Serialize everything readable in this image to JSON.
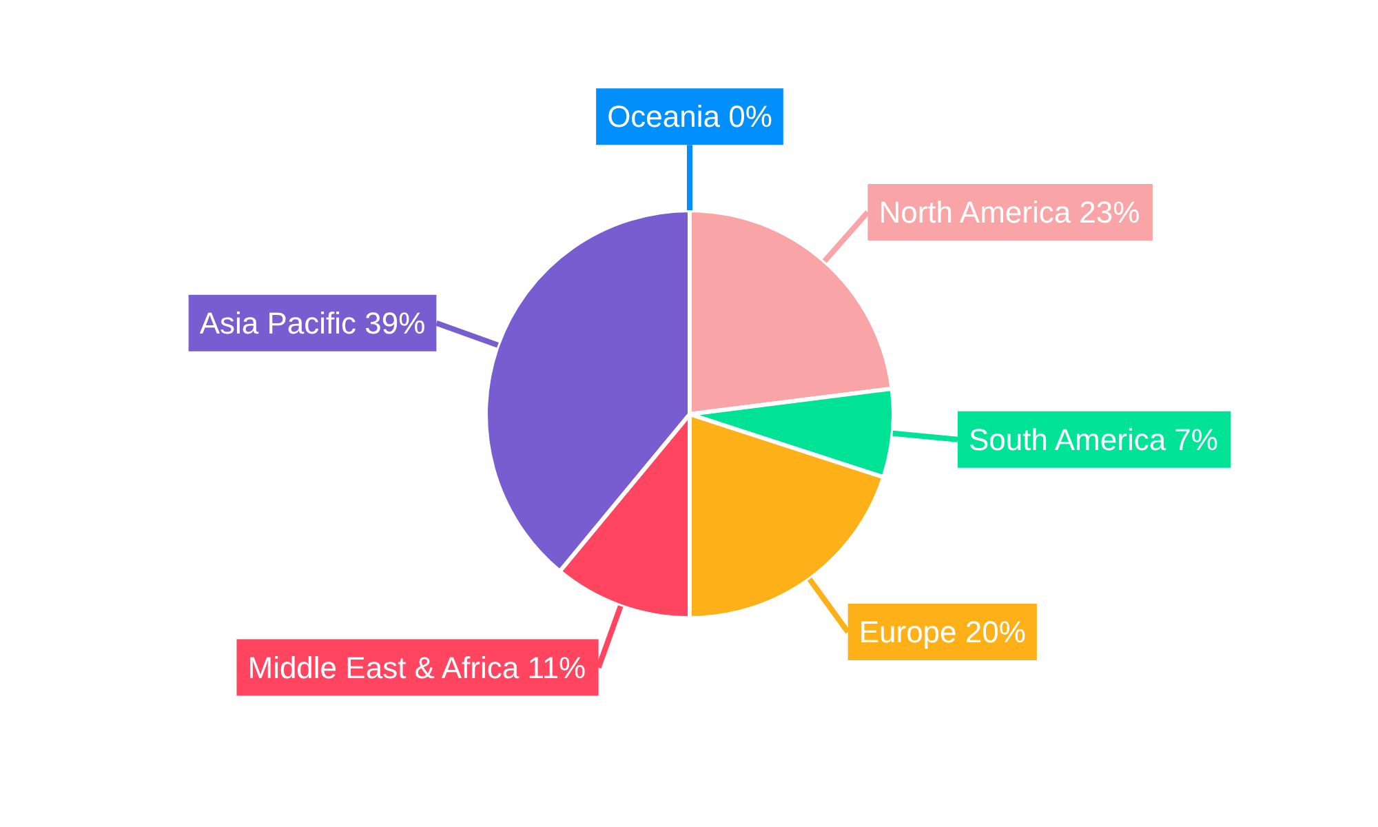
{
  "chart_data": {
    "type": "pie",
    "categories": [
      "North America",
      "South America",
      "Europe",
      "Middle East & Africa",
      "Asia Pacific",
      "Oceania"
    ],
    "values": [
      23,
      7,
      20,
      11,
      39,
      0
    ],
    "value_labels": [
      "23%",
      "7%",
      "20%",
      "11%",
      "39%",
      "0%"
    ],
    "colors": [
      "#f9a4a6",
      "#00e396",
      "#feb019",
      "#ff4560",
      "#775dd0",
      "#008ffb"
    ],
    "legend": false
  }
}
